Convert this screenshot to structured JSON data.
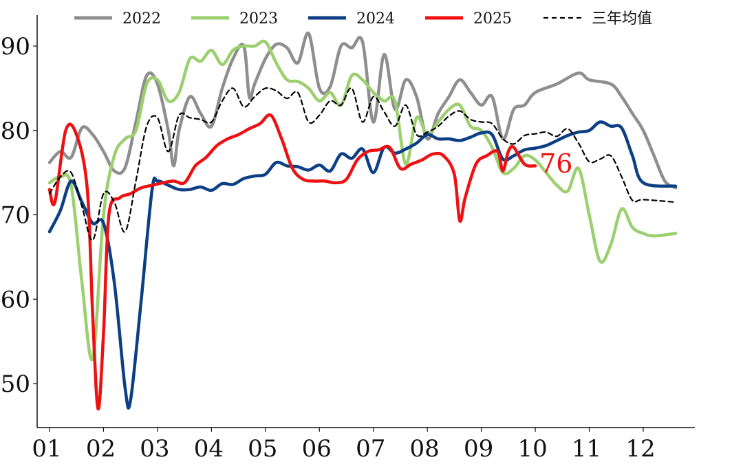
{
  "chart_data": {
    "type": "line",
    "title": "",
    "xlabel": "",
    "ylabel": "",
    "ylim": [
      45,
      95
    ],
    "y_ticks": [
      50,
      60,
      70,
      80,
      90
    ],
    "x_tick_labels": [
      "01",
      "02",
      "03",
      "04",
      "05",
      "06",
      "07",
      "08",
      "09",
      "10",
      "11",
      "12"
    ],
    "x_domain": [
      0.8,
      12.85
    ],
    "legend_position": "top",
    "end_label": {
      "text": "76",
      "x": 11.0,
      "y": 76,
      "color": "#ee1111"
    },
    "series": [
      {
        "name": "2022",
        "color": "#8e8e8e",
        "dashed": false,
        "points": [
          [
            1.0,
            76.2
          ],
          [
            1.2,
            77.5
          ],
          [
            1.4,
            76.8
          ],
          [
            1.6,
            80.3
          ],
          [
            1.8,
            79.5
          ],
          [
            2.0,
            77.5
          ],
          [
            2.2,
            75.2
          ],
          [
            2.4,
            75.6
          ],
          [
            2.6,
            81.0
          ],
          [
            2.8,
            86.5
          ],
          [
            3.0,
            85.5
          ],
          [
            3.2,
            80.0
          ],
          [
            3.3,
            75.8
          ],
          [
            3.4,
            80.0
          ],
          [
            3.6,
            84.0
          ],
          [
            3.8,
            82.0
          ],
          [
            4.0,
            80.5
          ],
          [
            4.2,
            85.0
          ],
          [
            4.4,
            88.5
          ],
          [
            4.6,
            90.0
          ],
          [
            4.7,
            84.0
          ],
          [
            4.8,
            85.5
          ],
          [
            5.0,
            88.5
          ],
          [
            5.2,
            90.2
          ],
          [
            5.4,
            89.8
          ],
          [
            5.6,
            88.0
          ],
          [
            5.8,
            91.5
          ],
          [
            6.0,
            85.0
          ],
          [
            6.2,
            85.2
          ],
          [
            6.4,
            90.0
          ],
          [
            6.6,
            89.8
          ],
          [
            6.8,
            90.5
          ],
          [
            7.0,
            81.0
          ],
          [
            7.2,
            89.0
          ],
          [
            7.4,
            82.5
          ],
          [
            7.6,
            86.0
          ],
          [
            7.8,
            84.0
          ],
          [
            8.0,
            79.0
          ],
          [
            8.2,
            82.0
          ],
          [
            8.4,
            84.0
          ],
          [
            8.6,
            86.0
          ],
          [
            8.8,
            84.5
          ],
          [
            9.0,
            83.0
          ],
          [
            9.2,
            84.0
          ],
          [
            9.4,
            79.0
          ],
          [
            9.6,
            82.5
          ],
          [
            9.8,
            83.0
          ],
          [
            10.0,
            84.5
          ],
          [
            10.4,
            85.5
          ],
          [
            10.8,
            86.8
          ],
          [
            11.0,
            86.0
          ],
          [
            11.4,
            85.5
          ],
          [
            11.6,
            84.0
          ],
          [
            11.8,
            82.0
          ],
          [
            12.0,
            80.0
          ],
          [
            12.2,
            77.0
          ],
          [
            12.4,
            74.0
          ],
          [
            12.6,
            73.2
          ]
        ]
      },
      {
        "name": "2023",
        "color": "#9ccf6e",
        "dashed": false,
        "points": [
          [
            1.0,
            73.8
          ],
          [
            1.2,
            74.5
          ],
          [
            1.4,
            73.5
          ],
          [
            1.6,
            62.0
          ],
          [
            1.8,
            53.0
          ],
          [
            2.0,
            70.0
          ],
          [
            2.2,
            77.0
          ],
          [
            2.4,
            79.0
          ],
          [
            2.6,
            80.0
          ],
          [
            2.8,
            85.5
          ],
          [
            3.0,
            86.0
          ],
          [
            3.2,
            83.5
          ],
          [
            3.4,
            84.5
          ],
          [
            3.6,
            88.5
          ],
          [
            3.8,
            88.2
          ],
          [
            4.0,
            89.5
          ],
          [
            4.2,
            87.8
          ],
          [
            4.4,
            89.5
          ],
          [
            4.6,
            90.0
          ],
          [
            4.8,
            90.0
          ],
          [
            5.0,
            90.5
          ],
          [
            5.2,
            88.0
          ],
          [
            5.4,
            86.0
          ],
          [
            5.6,
            85.8
          ],
          [
            5.8,
            85.0
          ],
          [
            6.0,
            83.5
          ],
          [
            6.2,
            84.5
          ],
          [
            6.4,
            83.0
          ],
          [
            6.6,
            86.5
          ],
          [
            6.8,
            86.0
          ],
          [
            7.0,
            84.5
          ],
          [
            7.2,
            83.5
          ],
          [
            7.4,
            83.5
          ],
          [
            7.6,
            76.0
          ],
          [
            7.8,
            81.5
          ],
          [
            8.0,
            79.5
          ],
          [
            8.2,
            81.0
          ],
          [
            8.4,
            82.5
          ],
          [
            8.6,
            83.0
          ],
          [
            8.8,
            80.5
          ],
          [
            9.0,
            80.0
          ],
          [
            9.2,
            78.0
          ],
          [
            9.4,
            75.0
          ],
          [
            9.6,
            75.5
          ],
          [
            9.8,
            77.0
          ],
          [
            10.0,
            76.5
          ],
          [
            10.2,
            75.0
          ],
          [
            10.4,
            73.5
          ],
          [
            10.6,
            72.8
          ],
          [
            10.8,
            75.5
          ],
          [
            11.0,
            70.0
          ],
          [
            11.2,
            64.5
          ],
          [
            11.4,
            66.5
          ],
          [
            11.6,
            70.7
          ],
          [
            11.8,
            68.5
          ],
          [
            12.0,
            67.8
          ],
          [
            12.2,
            67.5
          ],
          [
            12.6,
            67.8
          ]
        ]
      },
      {
        "name": "2024",
        "color": "#0d3f85",
        "dashed": false,
        "points": [
          [
            1.0,
            68.0
          ],
          [
            1.2,
            70.5
          ],
          [
            1.4,
            74.0
          ],
          [
            1.6,
            71.5
          ],
          [
            1.8,
            69.0
          ],
          [
            2.0,
            69.0
          ],
          [
            2.2,
            62.0
          ],
          [
            2.4,
            49.5
          ],
          [
            2.5,
            48.0
          ],
          [
            2.7,
            60.0
          ],
          [
            2.9,
            73.0
          ],
          [
            3.0,
            74.0
          ],
          [
            3.2,
            73.5
          ],
          [
            3.4,
            73.0
          ],
          [
            3.6,
            73.0
          ],
          [
            3.8,
            73.3
          ],
          [
            4.0,
            72.9
          ],
          [
            4.2,
            73.7
          ],
          [
            4.4,
            73.6
          ],
          [
            4.6,
            74.3
          ],
          [
            4.8,
            74.6
          ],
          [
            5.0,
            74.8
          ],
          [
            5.2,
            76.2
          ],
          [
            5.4,
            75.8
          ],
          [
            5.6,
            75.7
          ],
          [
            5.8,
            75.3
          ],
          [
            6.0,
            75.9
          ],
          [
            6.2,
            75.2
          ],
          [
            6.4,
            77.2
          ],
          [
            6.6,
            76.7
          ],
          [
            6.8,
            77.8
          ],
          [
            7.0,
            75.0
          ],
          [
            7.2,
            78.0
          ],
          [
            7.4,
            77.3
          ],
          [
            7.6,
            77.8
          ],
          [
            7.8,
            78.5
          ],
          [
            8.0,
            79.5
          ],
          [
            8.2,
            79.0
          ],
          [
            8.4,
            79.0
          ],
          [
            8.6,
            78.8
          ],
          [
            8.8,
            79.2
          ],
          [
            9.0,
            79.7
          ],
          [
            9.2,
            79.5
          ],
          [
            9.4,
            76.6
          ],
          [
            9.6,
            77.0
          ],
          [
            9.8,
            77.7
          ],
          [
            10.0,
            77.9
          ],
          [
            10.2,
            78.2
          ],
          [
            10.4,
            78.8
          ],
          [
            10.6,
            79.4
          ],
          [
            10.8,
            79.8
          ],
          [
            11.0,
            80.0
          ],
          [
            11.2,
            81.0
          ],
          [
            11.4,
            80.5
          ],
          [
            11.6,
            80.3
          ],
          [
            11.8,
            77.0
          ],
          [
            12.0,
            73.8
          ],
          [
            12.6,
            73.4
          ]
        ]
      },
      {
        "name": "2025",
        "color": "#ee1111",
        "dashed": false,
        "points": [
          [
            1.0,
            73.0
          ],
          [
            1.1,
            71.5
          ],
          [
            1.3,
            80.0
          ],
          [
            1.5,
            79.5
          ],
          [
            1.7,
            73.0
          ],
          [
            1.8,
            58.0
          ],
          [
            1.9,
            47.0
          ],
          [
            2.0,
            56.0
          ],
          [
            2.1,
            70.0
          ],
          [
            2.3,
            72.0
          ],
          [
            2.5,
            72.5
          ],
          [
            2.7,
            73.2
          ],
          [
            2.9,
            73.5
          ],
          [
            3.1,
            73.8
          ],
          [
            3.3,
            74.0
          ],
          [
            3.5,
            73.8
          ],
          [
            3.7,
            75.8
          ],
          [
            3.9,
            76.8
          ],
          [
            4.1,
            78.2
          ],
          [
            4.3,
            79.0
          ],
          [
            4.5,
            79.5
          ],
          [
            4.7,
            80.2
          ],
          [
            4.9,
            80.8
          ],
          [
            5.1,
            81.8
          ],
          [
            5.3,
            79.0
          ],
          [
            5.5,
            75.5
          ],
          [
            5.7,
            74.2
          ],
          [
            5.9,
            74.0
          ],
          [
            6.1,
            74.0
          ],
          [
            6.3,
            73.8
          ],
          [
            6.5,
            74.2
          ],
          [
            6.7,
            76.5
          ],
          [
            6.9,
            77.5
          ],
          [
            7.1,
            77.7
          ],
          [
            7.3,
            78.0
          ],
          [
            7.5,
            75.5
          ],
          [
            7.7,
            76.0
          ],
          [
            7.9,
            76.5
          ],
          [
            8.1,
            77.2
          ],
          [
            8.3,
            77.0
          ],
          [
            8.5,
            74.8
          ],
          [
            8.6,
            69.3
          ],
          [
            8.7,
            72.0
          ],
          [
            8.9,
            76.0
          ],
          [
            9.1,
            77.0
          ],
          [
            9.3,
            77.5
          ],
          [
            9.4,
            75.2
          ],
          [
            9.5,
            77.5
          ],
          [
            9.6,
            78.0
          ],
          [
            9.8,
            76.0
          ],
          [
            10.0,
            75.8
          ]
        ]
      },
      {
        "name": "三年均值",
        "color": "#000000",
        "dashed": true,
        "points": [
          [
            1.0,
            72.5
          ],
          [
            1.2,
            74.5
          ],
          [
            1.4,
            75.0
          ],
          [
            1.6,
            71.0
          ],
          [
            1.8,
            67.0
          ],
          [
            2.0,
            72.5
          ],
          [
            2.2,
            71.5
          ],
          [
            2.4,
            68.0
          ],
          [
            2.6,
            74.0
          ],
          [
            2.8,
            80.5
          ],
          [
            3.0,
            81.5
          ],
          [
            3.2,
            77.5
          ],
          [
            3.4,
            81.8
          ],
          [
            3.6,
            81.5
          ],
          [
            3.8,
            81.3
          ],
          [
            4.0,
            81.0
          ],
          [
            4.2,
            83.5
          ],
          [
            4.4,
            85.0
          ],
          [
            4.6,
            82.8
          ],
          [
            4.8,
            84.0
          ],
          [
            5.0,
            85.0
          ],
          [
            5.2,
            84.7
          ],
          [
            5.4,
            83.8
          ],
          [
            5.6,
            84.5
          ],
          [
            5.8,
            81.0
          ],
          [
            6.0,
            81.8
          ],
          [
            6.2,
            83.5
          ],
          [
            6.4,
            83.0
          ],
          [
            6.6,
            85.0
          ],
          [
            6.8,
            81.0
          ],
          [
            7.0,
            84.0
          ],
          [
            7.2,
            82.2
          ],
          [
            7.4,
            80.5
          ],
          [
            7.6,
            83.0
          ],
          [
            7.8,
            79.5
          ],
          [
            8.0,
            79.8
          ],
          [
            8.2,
            80.5
          ],
          [
            8.4,
            81.7
          ],
          [
            8.6,
            82.3
          ],
          [
            8.8,
            81.3
          ],
          [
            9.0,
            81.0
          ],
          [
            9.2,
            80.8
          ],
          [
            9.4,
            79.0
          ],
          [
            9.6,
            78.4
          ],
          [
            9.8,
            79.4
          ],
          [
            10.0,
            79.6
          ],
          [
            10.2,
            79.8
          ],
          [
            10.4,
            79.3
          ],
          [
            10.6,
            80.2
          ],
          [
            10.8,
            78.5
          ],
          [
            11.0,
            76.3
          ],
          [
            11.2,
            76.6
          ],
          [
            11.4,
            77.0
          ],
          [
            11.6,
            74.5
          ],
          [
            11.8,
            71.7
          ],
          [
            12.0,
            71.8
          ],
          [
            12.6,
            71.5
          ]
        ]
      }
    ]
  }
}
